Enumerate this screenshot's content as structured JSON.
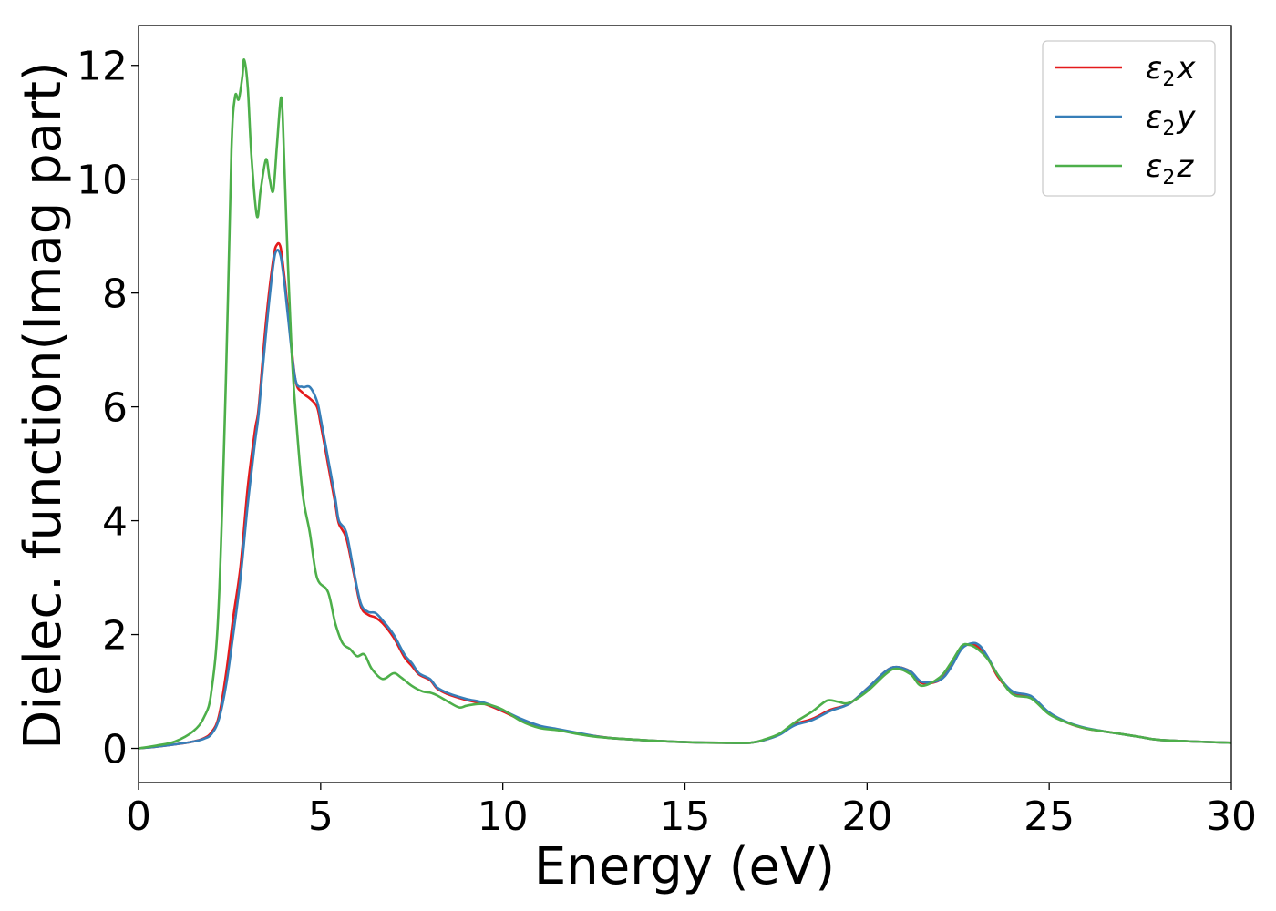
{
  "chart_data": {
    "type": "line",
    "title": "",
    "xlabel": "Energy (eV)",
    "ylabel": "Dielec. function(Imag part)",
    "xlim": [
      0,
      30
    ],
    "ylim": [
      -0.6,
      12.7
    ],
    "xticks": [
      0,
      5,
      10,
      15,
      20,
      25,
      30
    ],
    "yticks": [
      0,
      2,
      4,
      6,
      8,
      10,
      12
    ],
    "grid": false,
    "legend_position": "top-right",
    "series": [
      {
        "name": "ε2x",
        "legend_main": "ε",
        "legend_sub": "2",
        "legend_tail": "x",
        "color": "#e41a1c",
        "points": [
          [
            0,
            0
          ],
          [
            0.5,
            0.03
          ],
          [
            1.0,
            0.07
          ],
          [
            1.5,
            0.12
          ],
          [
            1.8,
            0.18
          ],
          [
            2.0,
            0.28
          ],
          [
            2.2,
            0.55
          ],
          [
            2.4,
            1.3
          ],
          [
            2.6,
            2.3
          ],
          [
            2.8,
            3.2
          ],
          [
            3.0,
            4.6
          ],
          [
            3.2,
            5.6
          ],
          [
            3.3,
            6.0
          ],
          [
            3.5,
            7.5
          ],
          [
            3.7,
            8.6
          ],
          [
            3.8,
            8.85
          ],
          [
            3.9,
            8.8
          ],
          [
            4.0,
            8.3
          ],
          [
            4.1,
            7.7
          ],
          [
            4.3,
            6.5
          ],
          [
            4.5,
            6.25
          ],
          [
            4.7,
            6.15
          ],
          [
            4.9,
            6.0
          ],
          [
            5.0,
            5.7
          ],
          [
            5.2,
            5.0
          ],
          [
            5.4,
            4.3
          ],
          [
            5.5,
            3.95
          ],
          [
            5.7,
            3.7
          ],
          [
            5.9,
            3.1
          ],
          [
            6.1,
            2.5
          ],
          [
            6.3,
            2.35
          ],
          [
            6.5,
            2.3
          ],
          [
            6.7,
            2.2
          ],
          [
            7.0,
            1.95
          ],
          [
            7.3,
            1.6
          ],
          [
            7.5,
            1.45
          ],
          [
            7.7,
            1.3
          ],
          [
            8.0,
            1.2
          ],
          [
            8.2,
            1.05
          ],
          [
            8.5,
            0.95
          ],
          [
            9.0,
            0.85
          ],
          [
            9.5,
            0.78
          ],
          [
            10,
            0.65
          ],
          [
            10.5,
            0.5
          ],
          [
            11,
            0.38
          ],
          [
            11.5,
            0.33
          ],
          [
            12,
            0.27
          ],
          [
            12.5,
            0.22
          ],
          [
            13,
            0.18
          ],
          [
            14,
            0.14
          ],
          [
            15,
            0.11
          ],
          [
            16,
            0.1
          ],
          [
            16.8,
            0.1
          ],
          [
            17.2,
            0.15
          ],
          [
            17.6,
            0.25
          ],
          [
            18,
            0.42
          ],
          [
            18.5,
            0.52
          ],
          [
            19,
            0.68
          ],
          [
            19.5,
            0.78
          ],
          [
            20,
            1.05
          ],
          [
            20.5,
            1.35
          ],
          [
            20.8,
            1.43
          ],
          [
            21.2,
            1.35
          ],
          [
            21.5,
            1.15
          ],
          [
            22,
            1.2
          ],
          [
            22.3,
            1.45
          ],
          [
            22.6,
            1.78
          ],
          [
            22.8,
            1.82
          ],
          [
            23,
            1.8
          ],
          [
            23.3,
            1.6
          ],
          [
            23.6,
            1.25
          ],
          [
            24,
            0.98
          ],
          [
            24.5,
            0.9
          ],
          [
            25,
            0.62
          ],
          [
            25.5,
            0.45
          ],
          [
            26,
            0.35
          ],
          [
            26.5,
            0.3
          ],
          [
            27,
            0.25
          ],
          [
            27.5,
            0.2
          ],
          [
            28,
            0.15
          ],
          [
            29,
            0.12
          ],
          [
            30,
            0.1
          ]
        ]
      },
      {
        "name": "ε2y",
        "legend_main": "ε",
        "legend_sub": "2",
        "legend_tail": "y",
        "color": "#377eb8",
        "points": [
          [
            0,
            0
          ],
          [
            0.5,
            0.03
          ],
          [
            1.0,
            0.07
          ],
          [
            1.5,
            0.12
          ],
          [
            1.8,
            0.17
          ],
          [
            2.0,
            0.25
          ],
          [
            2.2,
            0.5
          ],
          [
            2.4,
            1.1
          ],
          [
            2.6,
            2.0
          ],
          [
            2.8,
            3.0
          ],
          [
            3.0,
            4.3
          ],
          [
            3.2,
            5.4
          ],
          [
            3.3,
            5.9
          ],
          [
            3.5,
            7.3
          ],
          [
            3.7,
            8.5
          ],
          [
            3.8,
            8.75
          ],
          [
            3.9,
            8.65
          ],
          [
            4.0,
            8.2
          ],
          [
            4.1,
            7.6
          ],
          [
            4.3,
            6.5
          ],
          [
            4.5,
            6.35
          ],
          [
            4.7,
            6.35
          ],
          [
            4.9,
            6.1
          ],
          [
            5.0,
            5.8
          ],
          [
            5.2,
            5.1
          ],
          [
            5.4,
            4.4
          ],
          [
            5.5,
            4.0
          ],
          [
            5.7,
            3.8
          ],
          [
            5.9,
            3.15
          ],
          [
            6.1,
            2.55
          ],
          [
            6.3,
            2.4
          ],
          [
            6.5,
            2.38
          ],
          [
            6.7,
            2.25
          ],
          [
            7.0,
            2.0
          ],
          [
            7.3,
            1.65
          ],
          [
            7.5,
            1.5
          ],
          [
            7.7,
            1.32
          ],
          [
            8.0,
            1.22
          ],
          [
            8.2,
            1.07
          ],
          [
            8.5,
            0.97
          ],
          [
            9.0,
            0.87
          ],
          [
            9.5,
            0.8
          ],
          [
            10,
            0.67
          ],
          [
            10.5,
            0.52
          ],
          [
            11,
            0.4
          ],
          [
            11.5,
            0.34
          ],
          [
            12,
            0.28
          ],
          [
            12.5,
            0.22
          ],
          [
            13,
            0.18
          ],
          [
            14,
            0.14
          ],
          [
            15,
            0.11
          ],
          [
            16,
            0.1
          ],
          [
            16.8,
            0.1
          ],
          [
            17.2,
            0.15
          ],
          [
            17.6,
            0.24
          ],
          [
            18,
            0.4
          ],
          [
            18.5,
            0.5
          ],
          [
            19,
            0.66
          ],
          [
            19.5,
            0.78
          ],
          [
            20,
            1.05
          ],
          [
            20.5,
            1.35
          ],
          [
            20.8,
            1.43
          ],
          [
            21.2,
            1.35
          ],
          [
            21.5,
            1.17
          ],
          [
            22,
            1.2
          ],
          [
            22.3,
            1.42
          ],
          [
            22.6,
            1.75
          ],
          [
            22.9,
            1.85
          ],
          [
            23.1,
            1.8
          ],
          [
            23.3,
            1.62
          ],
          [
            23.6,
            1.28
          ],
          [
            24,
            1.0
          ],
          [
            24.5,
            0.92
          ],
          [
            25,
            0.63
          ],
          [
            25.5,
            0.46
          ],
          [
            26,
            0.36
          ],
          [
            26.5,
            0.3
          ],
          [
            27,
            0.25
          ],
          [
            27.5,
            0.2
          ],
          [
            28,
            0.15
          ],
          [
            29,
            0.12
          ],
          [
            30,
            0.1
          ]
        ]
      },
      {
        "name": "ε2z",
        "legend_main": "ε",
        "legend_sub": "2",
        "legend_tail": "z",
        "color": "#4daf4a",
        "points": [
          [
            0,
            0
          ],
          [
            0.5,
            0.05
          ],
          [
            1.0,
            0.12
          ],
          [
            1.5,
            0.3
          ],
          [
            1.8,
            0.55
          ],
          [
            2.0,
            1.0
          ],
          [
            2.2,
            2.5
          ],
          [
            2.4,
            6.5
          ],
          [
            2.55,
            10.5
          ],
          [
            2.65,
            11.45
          ],
          [
            2.75,
            11.4
          ],
          [
            2.85,
            11.8
          ],
          [
            2.9,
            12.1
          ],
          [
            3.0,
            11.6
          ],
          [
            3.1,
            10.4
          ],
          [
            3.25,
            9.35
          ],
          [
            3.35,
            9.8
          ],
          [
            3.5,
            10.35
          ],
          [
            3.6,
            10.0
          ],
          [
            3.7,
            9.8
          ],
          [
            3.8,
            10.6
          ],
          [
            3.9,
            11.4
          ],
          [
            3.95,
            11.2
          ],
          [
            4.0,
            10.3
          ],
          [
            4.1,
            8.5
          ],
          [
            4.2,
            7.0
          ],
          [
            4.3,
            6.0
          ],
          [
            4.5,
            4.5
          ],
          [
            4.7,
            3.8
          ],
          [
            4.9,
            3.0
          ],
          [
            5.2,
            2.75
          ],
          [
            5.4,
            2.2
          ],
          [
            5.6,
            1.85
          ],
          [
            5.8,
            1.75
          ],
          [
            6.0,
            1.62
          ],
          [
            6.2,
            1.65
          ],
          [
            6.4,
            1.4
          ],
          [
            6.7,
            1.22
          ],
          [
            7.0,
            1.32
          ],
          [
            7.2,
            1.25
          ],
          [
            7.5,
            1.1
          ],
          [
            7.8,
            1.0
          ],
          [
            8.0,
            0.98
          ],
          [
            8.2,
            0.93
          ],
          [
            8.5,
            0.82
          ],
          [
            8.8,
            0.72
          ],
          [
            9.0,
            0.75
          ],
          [
            9.3,
            0.78
          ],
          [
            9.6,
            0.77
          ],
          [
            10,
            0.68
          ],
          [
            10.5,
            0.48
          ],
          [
            11,
            0.36
          ],
          [
            11.5,
            0.32
          ],
          [
            12,
            0.26
          ],
          [
            12.5,
            0.21
          ],
          [
            13,
            0.18
          ],
          [
            14,
            0.14
          ],
          [
            15,
            0.11
          ],
          [
            16,
            0.1
          ],
          [
            16.8,
            0.1
          ],
          [
            17.2,
            0.16
          ],
          [
            17.6,
            0.26
          ],
          [
            18,
            0.45
          ],
          [
            18.5,
            0.65
          ],
          [
            18.9,
            0.84
          ],
          [
            19.2,
            0.82
          ],
          [
            19.5,
            0.8
          ],
          [
            20,
            1.0
          ],
          [
            20.5,
            1.3
          ],
          [
            20.8,
            1.4
          ],
          [
            21.2,
            1.3
          ],
          [
            21.5,
            1.1
          ],
          [
            22,
            1.25
          ],
          [
            22.3,
            1.5
          ],
          [
            22.6,
            1.8
          ],
          [
            22.8,
            1.82
          ],
          [
            23.0,
            1.76
          ],
          [
            23.3,
            1.58
          ],
          [
            23.6,
            1.28
          ],
          [
            24,
            0.95
          ],
          [
            24.5,
            0.88
          ],
          [
            25,
            0.6
          ],
          [
            25.5,
            0.45
          ],
          [
            26,
            0.35
          ],
          [
            26.5,
            0.3
          ],
          [
            27,
            0.25
          ],
          [
            27.5,
            0.2
          ],
          [
            28,
            0.15
          ],
          [
            29,
            0.12
          ],
          [
            30,
            0.1
          ]
        ]
      }
    ]
  }
}
